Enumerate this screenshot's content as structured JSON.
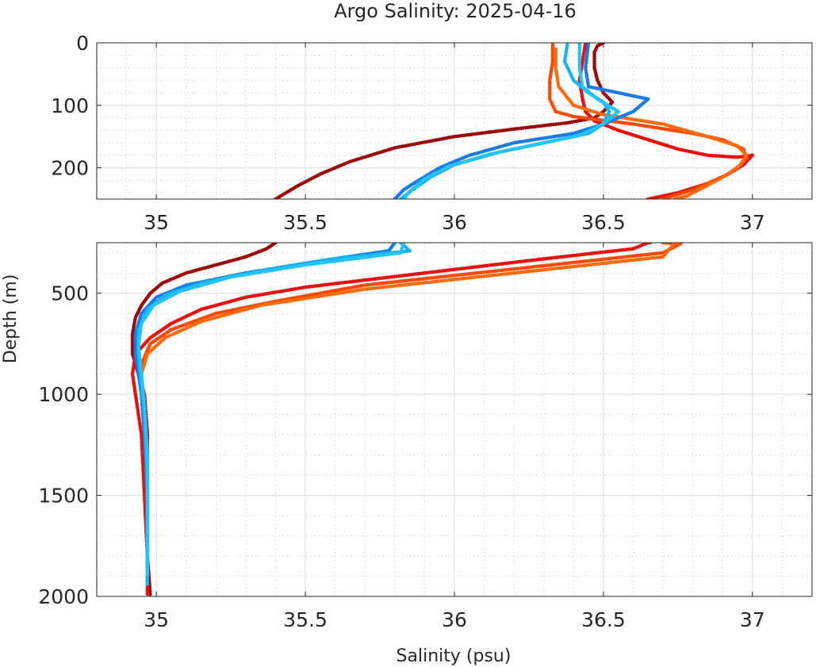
{
  "chart_data": {
    "type": "scatter",
    "title": "Argo Salinity: 2025-04-16",
    "xlabel": "Salinity (psu)",
    "ylabel": "Depth (m)",
    "grid": true,
    "panels": [
      {
        "id": "upper",
        "xlim": [
          34.8,
          37.2
        ],
        "ylim": [
          0,
          250
        ],
        "xticks": [
          35,
          35.5,
          36,
          36.5,
          37
        ],
        "xtick_labels": [
          "35",
          "35.5",
          "36",
          "36.5",
          "37"
        ],
        "yticks": [
          0,
          100,
          200
        ],
        "ytick_labels": [
          "0",
          "100",
          "200"
        ]
      },
      {
        "id": "lower",
        "xlim": [
          34.8,
          37.2
        ],
        "ylim": [
          250,
          2000
        ],
        "xticks": [
          35,
          35.5,
          36,
          36.5,
          37
        ],
        "xtick_labels": [
          "35",
          "35.5",
          "36",
          "36.5",
          "37"
        ],
        "yticks": [
          500,
          1000,
          1500,
          2000
        ],
        "ytick_labels": [
          "500",
          "1000",
          "1500",
          "2000"
        ]
      }
    ],
    "series": [
      {
        "color": "#9b0a0a",
        "points": [
          [
            36.5,
            0
          ],
          [
            36.48,
            5
          ],
          [
            36.47,
            15
          ],
          [
            36.47,
            40
          ],
          [
            36.48,
            60
          ],
          [
            36.5,
            80
          ],
          [
            36.53,
            95
          ],
          [
            36.5,
            110
          ],
          [
            36.47,
            120
          ],
          [
            36.38,
            128
          ],
          [
            36.2,
            138
          ],
          [
            36.0,
            150
          ],
          [
            35.8,
            168
          ],
          [
            35.65,
            190
          ],
          [
            35.55,
            210
          ],
          [
            35.47,
            230
          ],
          [
            35.4,
            250
          ],
          [
            35.37,
            280
          ],
          [
            35.3,
            320
          ],
          [
            35.2,
            360
          ],
          [
            35.1,
            400
          ],
          [
            35.02,
            450
          ],
          [
            34.98,
            500
          ],
          [
            34.95,
            560
          ],
          [
            34.93,
            620
          ],
          [
            34.92,
            700
          ],
          [
            34.92,
            800
          ],
          [
            34.94,
            900
          ],
          [
            34.96,
            1000
          ],
          [
            34.97,
            1200
          ],
          [
            34.97,
            1500
          ],
          [
            34.97,
            1800
          ],
          [
            34.98,
            2000
          ]
        ]
      },
      {
        "color": "#e8100c",
        "points": [
          [
            36.44,
            0
          ],
          [
            36.43,
            30
          ],
          [
            36.42,
            60
          ],
          [
            36.43,
            90
          ],
          [
            36.44,
            110
          ],
          [
            36.47,
            125
          ],
          [
            36.55,
            140
          ],
          [
            36.65,
            155
          ],
          [
            36.75,
            170
          ],
          [
            36.85,
            180
          ],
          [
            36.95,
            183
          ],
          [
            37.0,
            180
          ],
          [
            36.97,
            195
          ],
          [
            36.92,
            210
          ],
          [
            36.85,
            225
          ],
          [
            36.75,
            240
          ],
          [
            36.65,
            250
          ],
          [
            36.6,
            280
          ],
          [
            36.3,
            330
          ],
          [
            35.9,
            400
          ],
          [
            35.5,
            470
          ],
          [
            35.3,
            520
          ],
          [
            35.15,
            580
          ],
          [
            35.05,
            650
          ],
          [
            34.98,
            720
          ],
          [
            34.93,
            800
          ],
          [
            34.92,
            900
          ],
          [
            34.93,
            1000
          ],
          [
            34.95,
            1200
          ],
          [
            34.96,
            1500
          ],
          [
            34.97,
            1800
          ],
          [
            34.97,
            2000
          ]
        ]
      },
      {
        "color": "#fb4a07",
        "points": [
          [
            36.33,
            0
          ],
          [
            36.33,
            30
          ],
          [
            36.32,
            60
          ],
          [
            36.32,
            90
          ],
          [
            36.34,
            110
          ],
          [
            36.4,
            118
          ],
          [
            36.6,
            130
          ],
          [
            36.8,
            145
          ],
          [
            36.9,
            155
          ],
          [
            36.97,
            170
          ],
          [
            36.98,
            185
          ],
          [
            36.95,
            200
          ],
          [
            36.9,
            215
          ],
          [
            36.8,
            235
          ],
          [
            36.7,
            250
          ],
          [
            36.76,
            255
          ],
          [
            36.7,
            300
          ],
          [
            36.2,
            380
          ],
          [
            35.7,
            460
          ],
          [
            35.4,
            540
          ],
          [
            35.2,
            600
          ],
          [
            35.05,
            680
          ],
          [
            34.98,
            750
          ],
          [
            34.95,
            850
          ],
          [
            34.95,
            1000
          ],
          [
            34.96,
            1200
          ],
          [
            34.97,
            1500
          ],
          [
            34.97,
            1800
          ]
        ]
      },
      {
        "color": "#ff6b0b",
        "points": [
          [
            36.34,
            10
          ],
          [
            36.34,
            40
          ],
          [
            36.35,
            70
          ],
          [
            36.4,
            100
          ],
          [
            36.5,
            115
          ],
          [
            36.7,
            130
          ],
          [
            36.85,
            150
          ],
          [
            36.95,
            165
          ],
          [
            36.98,
            180
          ],
          [
            36.96,
            195
          ],
          [
            36.92,
            210
          ],
          [
            36.85,
            228
          ],
          [
            36.78,
            245
          ],
          [
            36.74,
            250
          ],
          [
            36.7,
            320
          ],
          [
            36.2,
            400
          ],
          [
            35.7,
            480
          ],
          [
            35.35,
            560
          ],
          [
            35.15,
            640
          ],
          [
            35.03,
            720
          ],
          [
            34.97,
            800
          ],
          [
            34.95,
            900
          ]
        ]
      },
      {
        "color": "#1a7ae8",
        "points": [
          [
            36.45,
            0
          ],
          [
            36.44,
            40
          ],
          [
            36.45,
            70
          ],
          [
            36.55,
            80
          ],
          [
            36.65,
            90
          ],
          [
            36.6,
            110
          ],
          [
            36.5,
            130
          ],
          [
            36.4,
            145
          ],
          [
            36.2,
            160
          ],
          [
            36.05,
            180
          ],
          [
            35.95,
            200
          ],
          [
            35.88,
            220
          ],
          [
            35.83,
            235
          ],
          [
            35.8,
            250
          ],
          [
            35.78,
            290
          ],
          [
            35.55,
            340
          ],
          [
            35.3,
            400
          ],
          [
            35.1,
            460
          ],
          [
            35.0,
            520
          ],
          [
            34.95,
            600
          ],
          [
            34.93,
            700
          ],
          [
            34.93,
            800
          ],
          [
            34.94,
            900
          ],
          [
            34.95,
            1000
          ],
          [
            34.96,
            1200
          ],
          [
            34.97,
            1500
          ],
          [
            34.97,
            1800
          ],
          [
            34.97,
            1950
          ]
        ]
      },
      {
        "color": "#12b4f2",
        "points": [
          [
            36.38,
            0
          ],
          [
            36.37,
            30
          ],
          [
            36.4,
            60
          ],
          [
            36.45,
            80
          ],
          [
            36.5,
            95
          ],
          [
            36.52,
            110
          ],
          [
            36.5,
            130
          ],
          [
            36.45,
            145
          ],
          [
            36.3,
            160
          ],
          [
            36.15,
            175
          ],
          [
            36.0,
            195
          ],
          [
            35.92,
            215
          ],
          [
            35.86,
            235
          ],
          [
            35.82,
            250
          ],
          [
            35.85,
            290
          ],
          [
            35.6,
            330
          ],
          [
            35.35,
            390
          ],
          [
            35.15,
            450
          ],
          [
            35.03,
            510
          ],
          [
            34.97,
            580
          ],
          [
            34.94,
            680
          ],
          [
            34.94,
            800
          ],
          [
            34.95,
            950
          ],
          [
            34.96,
            1100
          ],
          [
            34.97,
            1400
          ],
          [
            34.97,
            1700
          ],
          [
            34.97,
            1950
          ]
        ]
      },
      {
        "color": "#25c3f8",
        "points": [
          [
            36.42,
            0
          ],
          [
            36.42,
            40
          ],
          [
            36.43,
            70
          ],
          [
            36.48,
            90
          ],
          [
            36.55,
            110
          ],
          [
            36.5,
            130
          ],
          [
            36.42,
            148
          ],
          [
            36.28,
            162
          ],
          [
            36.12,
            178
          ],
          [
            35.98,
            198
          ],
          [
            35.9,
            218
          ],
          [
            35.85,
            238
          ],
          [
            35.83,
            250
          ],
          [
            35.82,
            300
          ],
          [
            35.5,
            360
          ],
          [
            35.25,
            420
          ],
          [
            35.08,
            490
          ],
          [
            34.99,
            560
          ],
          [
            34.95,
            650
          ],
          [
            34.94,
            760
          ],
          [
            34.95,
            900
          ],
          [
            34.96,
            1050
          ],
          [
            34.97,
            1300
          ],
          [
            34.97,
            1600
          ],
          [
            34.97,
            1900
          ]
        ]
      }
    ]
  }
}
